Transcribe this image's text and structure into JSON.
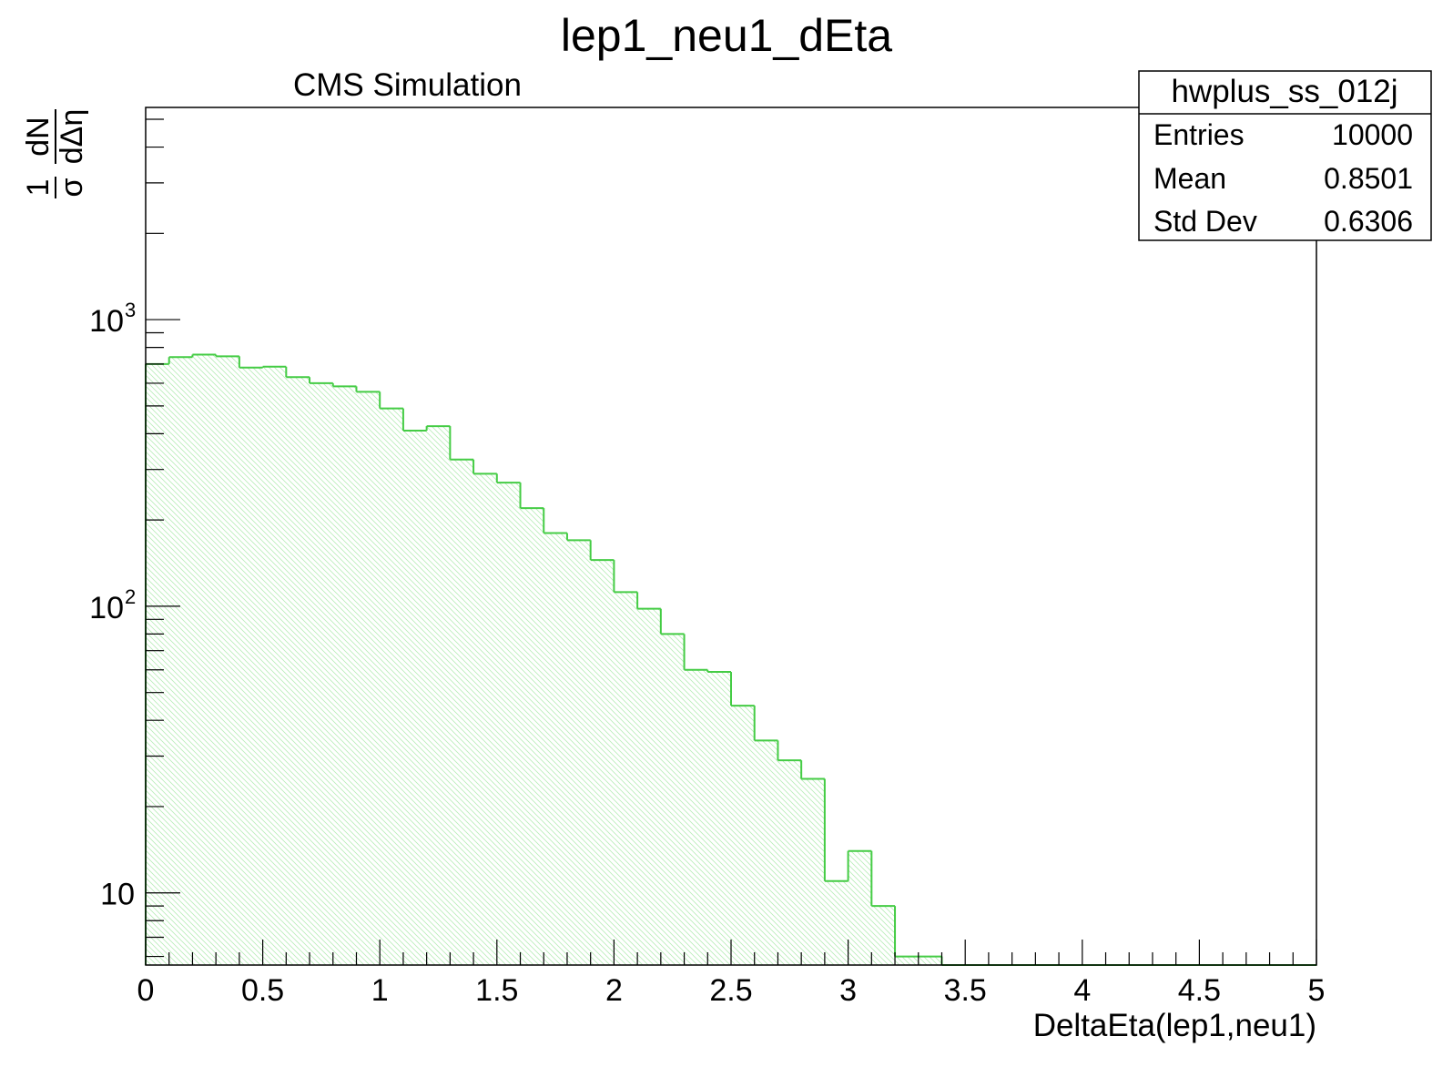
{
  "title": "lep1_neu1_dEta",
  "subtitle": "CMS Simulation",
  "colors": {
    "line": "#44cc44",
    "hatch": "#b8ecb8",
    "axis": "#000000",
    "background": "#ffffff"
  },
  "stats_box": {
    "name": "hwplus_ss_012j",
    "rows": [
      {
        "label": "Entries",
        "value": "10000"
      },
      {
        "label": "Mean",
        "value": "0.8501"
      },
      {
        "label": "Std Dev",
        "value": "0.6306"
      }
    ]
  },
  "y_axis_label": {
    "fraction_1_num": "1",
    "fraction_1_den": "σ",
    "fraction_2_num": "dN",
    "fraction_2_den": "dΔη"
  },
  "chart_data": {
    "type": "bar",
    "title": "lep1_neu1_dEta",
    "xlabel": "DeltaEta(lep1,neu1)",
    "ylabel": "1/σ dN/dΔη",
    "xlim": [
      0,
      5
    ],
    "ylim": [
      5.6,
      5500
    ],
    "y_scale": "log",
    "grid": false,
    "legend": "top-right",
    "bin_width": 0.1,
    "bin_edges_start": 0,
    "values": [
      700,
      740,
      755,
      745,
      680,
      685,
      630,
      600,
      585,
      560,
      490,
      410,
      425,
      325,
      290,
      270,
      220,
      180,
      170,
      145,
      112,
      98,
      80,
      60,
      59,
      45,
      34,
      29,
      25,
      11,
      14,
      9,
      6,
      6,
      0,
      0,
      0,
      0,
      0,
      0,
      0,
      0,
      0,
      0,
      0,
      0,
      0,
      0,
      0,
      0
    ],
    "x_ticks": [
      {
        "value": 0,
        "label": "0"
      },
      {
        "value": 0.5,
        "label": "0.5"
      },
      {
        "value": 1,
        "label": "1"
      },
      {
        "value": 1.5,
        "label": "1.5"
      },
      {
        "value": 2,
        "label": "2"
      },
      {
        "value": 2.5,
        "label": "2.5"
      },
      {
        "value": 3,
        "label": "3"
      },
      {
        "value": 3.5,
        "label": "3.5"
      },
      {
        "value": 4,
        "label": "4"
      },
      {
        "value": 4.5,
        "label": "4.5"
      },
      {
        "value": 5,
        "label": "5"
      }
    ],
    "y_ticks": [
      {
        "value": 10,
        "base": "10",
        "exp": ""
      },
      {
        "value": 100,
        "base": "10",
        "exp": "2"
      },
      {
        "value": 1000,
        "base": "10",
        "exp": "3"
      }
    ]
  }
}
